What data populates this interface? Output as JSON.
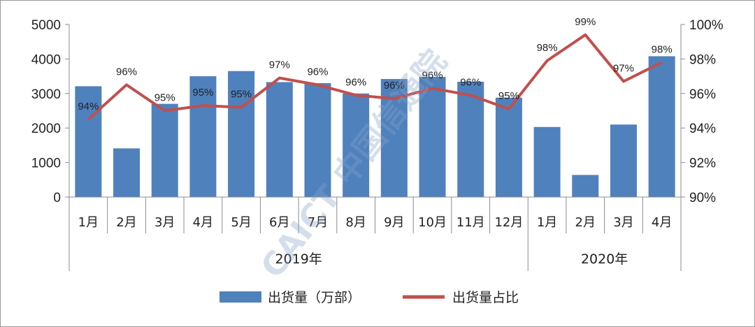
{
  "chart_data": {
    "type": "bar+line",
    "categories": [
      "1月",
      "2月",
      "3月",
      "4月",
      "5月",
      "6月",
      "7月",
      "8月",
      "9月",
      "10月",
      "11月",
      "12月",
      "1月",
      "2月",
      "3月",
      "4月"
    ],
    "groups": [
      {
        "label": "2019年",
        "count": 12
      },
      {
        "label": "2020年",
        "count": 4
      }
    ],
    "series": [
      {
        "name": "出货量（万部）",
        "type": "bar",
        "axis": "left",
        "color": "#4f81bd",
        "values": [
          3210,
          1410,
          2700,
          3500,
          3650,
          3330,
          3300,
          3000,
          3420,
          3480,
          3340,
          2880,
          2030,
          640,
          2100,
          4080
        ]
      },
      {
        "name": "出货量占比",
        "type": "line",
        "axis": "right",
        "color": "#c0504d",
        "values": [
          94.5,
          96.5,
          95.0,
          95.3,
          95.2,
          96.9,
          96.5,
          95.9,
          95.7,
          96.3,
          95.9,
          95.1,
          97.9,
          99.4,
          96.7,
          97.8
        ],
        "labels": [
          "94%",
          "96%",
          "95%",
          "95%",
          "95%",
          "97%",
          "96%",
          "96%",
          "96%",
          "96%",
          "96%",
          "95%",
          "98%",
          "99%",
          "97%",
          "98%"
        ]
      }
    ],
    "y_left": {
      "min": 0,
      "max": 5000,
      "ticks": [
        "0",
        "1000",
        "2000",
        "3000",
        "4000",
        "5000"
      ]
    },
    "y_right": {
      "min": 90,
      "max": 100,
      "ticks": [
        "90%",
        "92%",
        "94%",
        "96%",
        "98%",
        "100%"
      ]
    },
    "grid": false,
    "legend_position": "bottom",
    "watermark": "CAICT 中国信通院"
  }
}
